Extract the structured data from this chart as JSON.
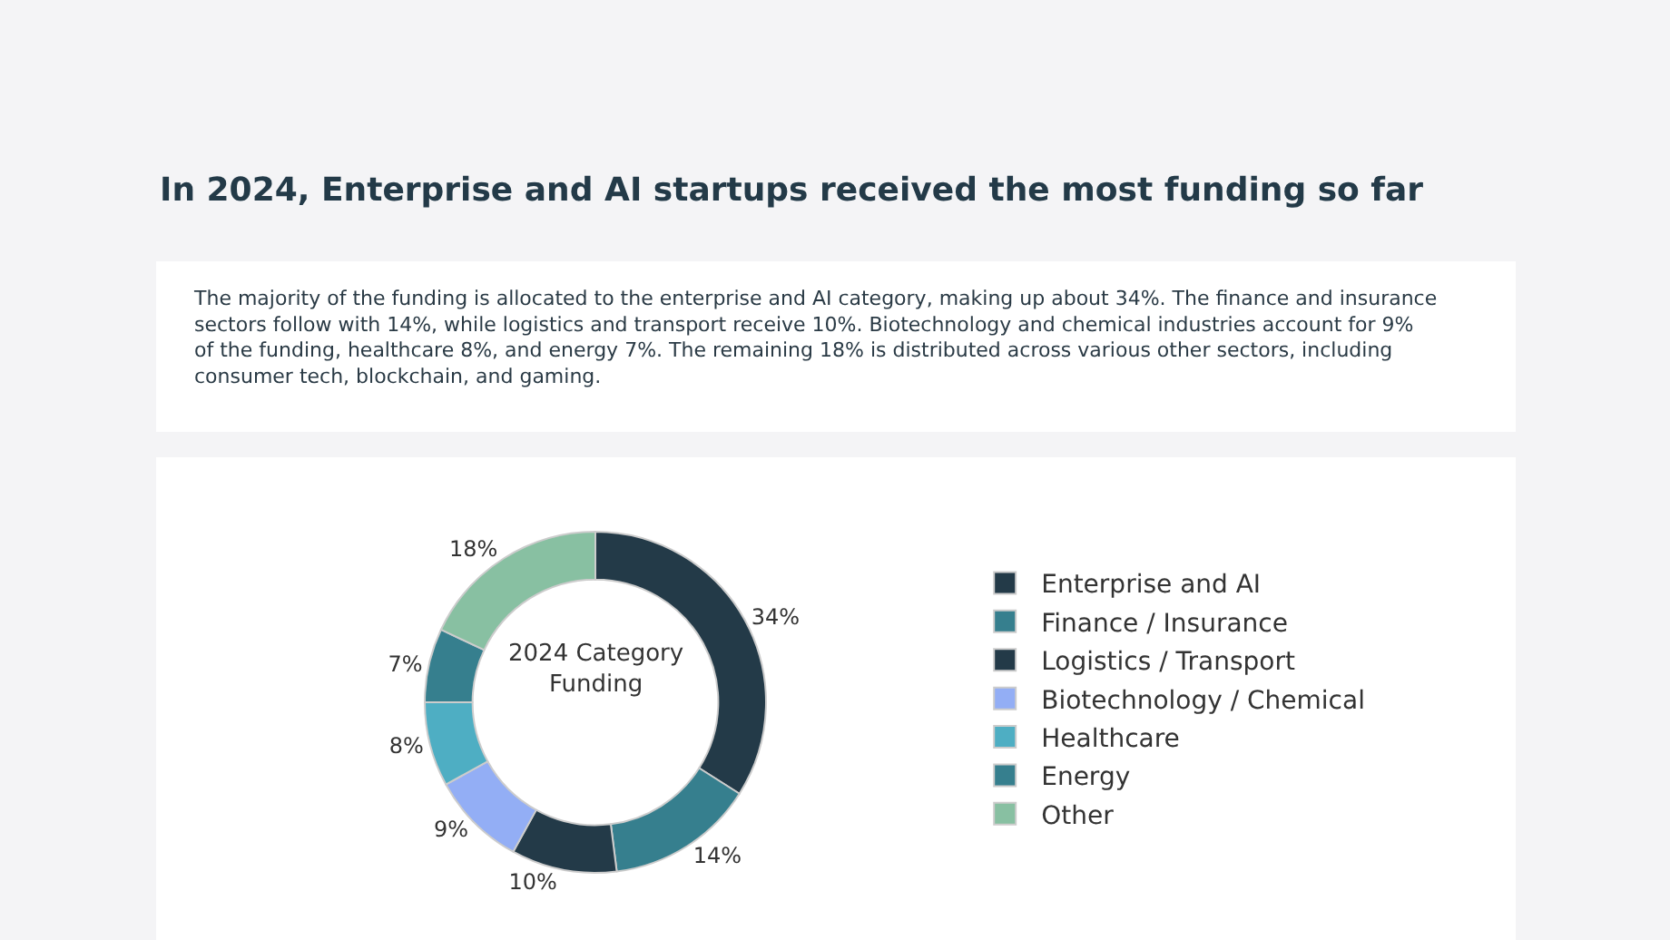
{
  "chart_data": {
    "type": "donut",
    "title": "In 2024, Enterprise and AI startups received the most funding so far",
    "subtitle": "The majority of the funding is allocated to the enterprise and AI category, making up about 34%. The finance and insurance sectors follow with 14%, while logistics and transport receive 10%. Biotechnology and chemical industries account for 9% of the funding, healthcare 8%, and energy 7%. The remaining 18% is distributed across various other sectors, including consumer tech, blockchain, and gaming.",
    "annotations": [
      "2024 Category Funding"
    ],
    "categories": [
      "Enterprise and AI",
      "Finance / Insurance",
      "Logistics / Transport",
      "Biotechnology / Chemical",
      "Healthcare",
      "Energy",
      "Other"
    ],
    "values": [
      34,
      14,
      10,
      9,
      8,
      7,
      18
    ],
    "colors": [
      "#233a48",
      "#367f8e",
      "#233a48",
      "#93aef5",
      "#4eaec3",
      "#367f8e",
      "#88c0a2"
    ],
    "value_labels": [
      "34%",
      "14%",
      "10%",
      "9%",
      "8%",
      "7%",
      "18%"
    ],
    "legend": "right"
  }
}
